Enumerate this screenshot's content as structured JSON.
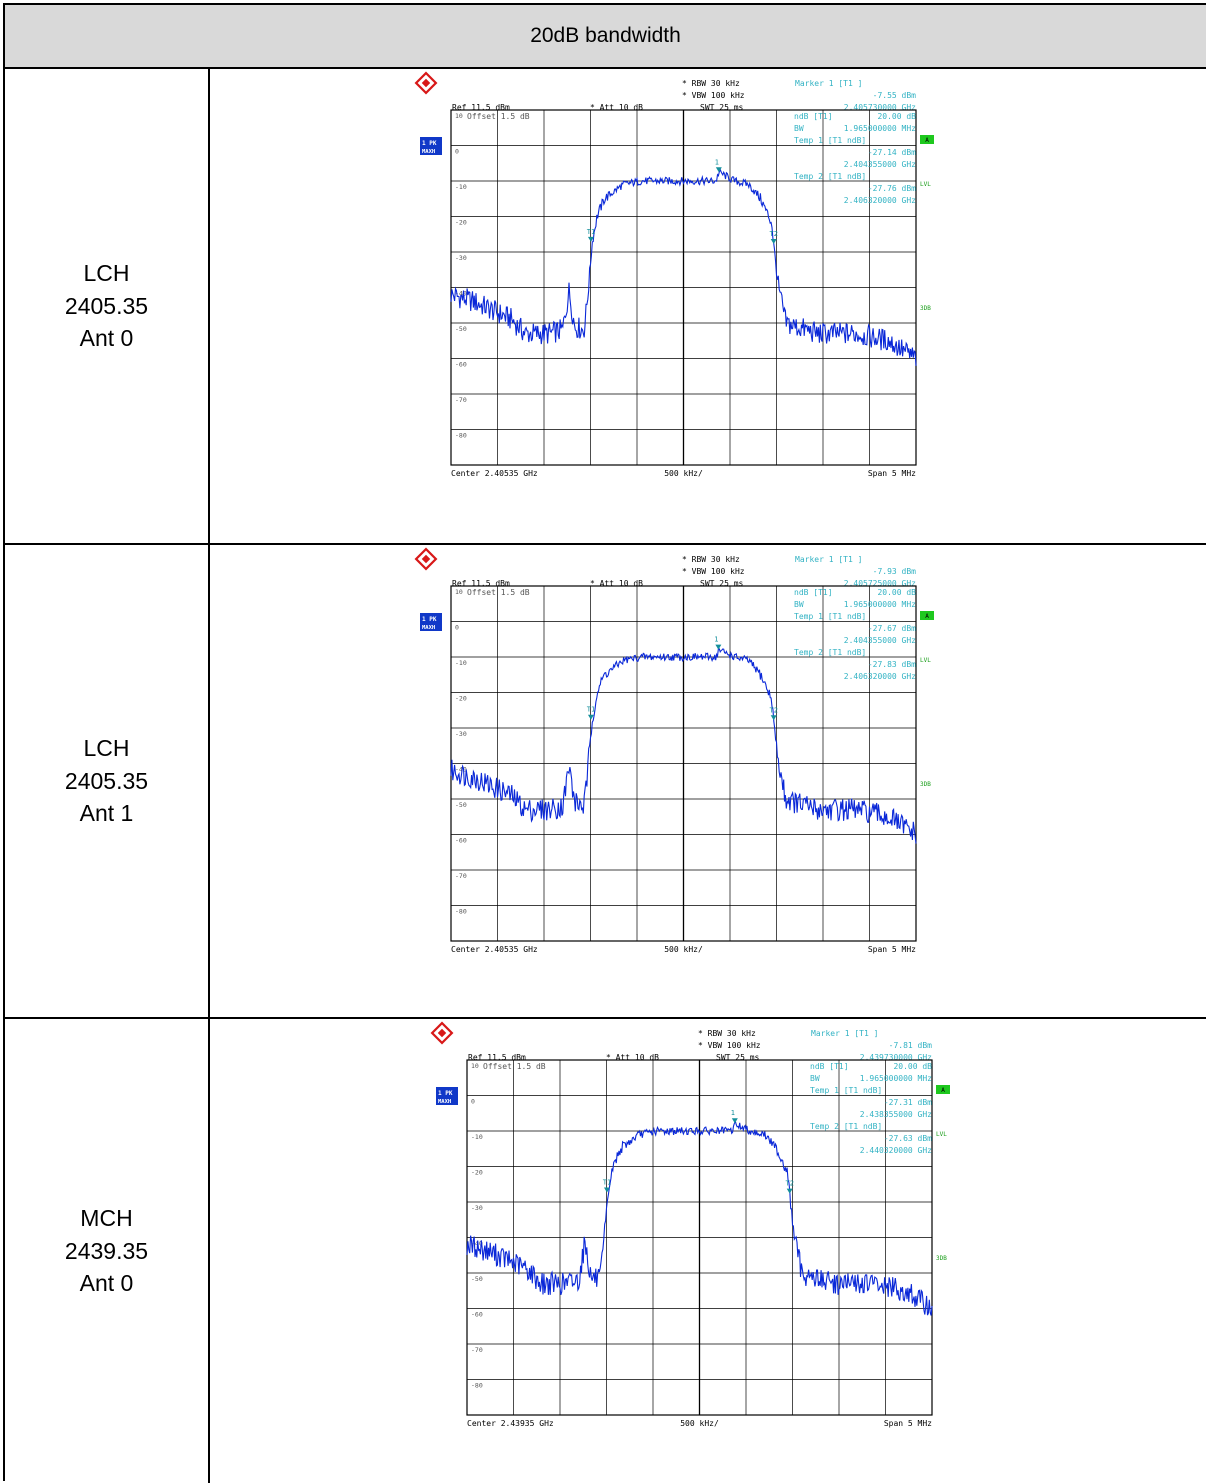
{
  "table": {
    "title": "20dB bandwidth",
    "rows": [
      {
        "label_lines": [
          "LCH",
          "2405.35",
          "Ant 0"
        ],
        "analyzer": {
          "rbw": "RBW 30 kHz",
          "vbw": "VBW 100 kHz",
          "swt": "SWT 25 ms",
          "ref": "Ref 11.5 dBm",
          "att": "Att 10 dB",
          "offset": "Offset 1.5 dB",
          "marker_title": "Marker 1 [T1 ]",
          "marker_level": "-7.55 dBm",
          "marker_freq": "2.405730000 GHz",
          "ndb_label": "ndB [T1]",
          "ndb_value": "20.00 dB",
          "bw_label": "BW",
          "bw_value": "1.965000000 MHz",
          "temp1_label": "Temp 1 [T1 ndB]",
          "temp1_level": "-27.14 dBm",
          "temp1_freq": "2.404355000 GHz",
          "temp2_label": "Temp 2 [T1 ndB]",
          "temp2_level": "-27.76 dBm",
          "temp2_freq": "2.406320000 GHz",
          "center": "Center 2.40535 GHz",
          "div": "500 kHz/",
          "span": "Span 5 MHz",
          "trace_box": "1 PK",
          "trace_box2": "MAXH",
          "side_a": "A",
          "side_lvl": "LVL",
          "side_3db": "3DB",
          "marker_labels": [
            "1",
            "T1",
            "T2"
          ],
          "y_ticks": [
            "10",
            "0",
            "-10",
            "-20",
            "-30",
            "-40",
            "-50",
            "-60",
            "-70",
            "-80"
          ]
        },
        "chart_data": {
          "type": "line",
          "xlabel": "",
          "ylabel": "",
          "xlim": [
            2.40285,
            2.40785
          ],
          "ylim": [
            -90,
            10
          ],
          "series": [
            {
              "x": [
                2.40285,
                2.4031,
                2.4035,
                2.40365,
                2.4039,
                2.40405,
                2.40412,
                2.40418,
                2.40428,
                2.4043,
                2.40434,
                2.40437,
                2.40442,
                2.4045,
                2.4047,
                2.4049,
                2.4051,
                2.4053,
                2.4055,
                2.4057,
                2.40573,
                2.4059,
                2.40605,
                2.40618,
                2.4063,
                2.40632,
                2.40637,
                2.40645,
                2.40655,
                2.4068,
                2.4072,
                2.40755,
                2.40785
              ],
              "y": [
                -42,
                -44,
                -49,
                -53,
                -53,
                -52,
                -41,
                -51,
                -52,
                -48,
                -36,
                -27,
                -20,
                -15,
                -11,
                -10,
                -10,
                -10,
                -10,
                -10,
                -7.5,
                -10,
                -11,
                -15,
                -22,
                -28,
                -40,
                -50,
                -51,
                -53,
                -53,
                -55,
                -60
              ]
            }
          ]
        }
      },
      {
        "label_lines": [
          "LCH",
          "2405.35",
          "Ant 1"
        ],
        "analyzer": {
          "rbw": "RBW 30 kHz",
          "vbw": "VBW 100 kHz",
          "swt": "SWT 25 ms",
          "ref": "Ref 11.5 dBm",
          "att": "Att 10 dB",
          "offset": "Offset 1.5 dB",
          "marker_title": "Marker 1 [T1 ]",
          "marker_level": "-7.93 dBm",
          "marker_freq": "2.405725000 GHz",
          "ndb_label": "ndB [T1]",
          "ndb_value": "20.00 dB",
          "bw_label": "BW",
          "bw_value": "1.965000000 MHz",
          "temp1_label": "Temp 1 [T1 ndB]",
          "temp1_level": "-27.67 dBm",
          "temp1_freq": "2.404355000 GHz",
          "temp2_label": "Temp 2 [T1 ndB]",
          "temp2_level": "-27.83 dBm",
          "temp2_freq": "2.406320000 GHz",
          "center": "Center 2.40535 GHz",
          "div": "500 kHz/",
          "span": "Span 5 MHz",
          "trace_box": "1 PK",
          "trace_box2": "MAXH",
          "side_a": "A",
          "side_lvl": "LVL",
          "side_3db": "3DB",
          "marker_labels": [
            "1",
            "T1",
            "T2"
          ],
          "y_ticks": [
            "10",
            "0",
            "-10",
            "-20",
            "-30",
            "-40",
            "-50",
            "-60",
            "-70",
            "-80"
          ]
        },
        "chart_data": {
          "type": "line",
          "xlabel": "",
          "ylabel": "",
          "xlim": [
            2.40285,
            2.40785
          ],
          "ylim": [
            -90,
            10
          ],
          "series": [
            {
              "x": [
                2.40285,
                2.4031,
                2.4035,
                2.40365,
                2.4039,
                2.40405,
                2.40412,
                2.40418,
                2.40428,
                2.4043,
                2.40434,
                2.40437,
                2.40442,
                2.4045,
                2.4047,
                2.4049,
                2.4051,
                2.4053,
                2.4055,
                2.4057,
                2.40573,
                2.4059,
                2.40605,
                2.40618,
                2.4063,
                2.40632,
                2.40637,
                2.40645,
                2.40655,
                2.4068,
                2.4072,
                2.40755,
                2.40785
              ],
              "y": [
                -42,
                -44,
                -49,
                -53,
                -53,
                -52,
                -41,
                -51,
                -52,
                -48,
                -36,
                -28,
                -20,
                -15,
                -11,
                -10,
                -10,
                -10,
                -10,
                -10,
                -8,
                -10,
                -11,
                -15,
                -22,
                -28,
                -40,
                -50,
                -51,
                -53,
                -53,
                -55,
                -60
              ]
            }
          ]
        }
      },
      {
        "label_lines": [
          "MCH",
          "2439.35",
          "Ant 0"
        ],
        "analyzer": {
          "rbw": "RBW 30 kHz",
          "vbw": "VBW 100 kHz",
          "swt": "SWT 25 ms",
          "ref": "Ref 11.5 dBm",
          "att": "Att 10 dB",
          "offset": "Offset 1.5 dB",
          "marker_title": "Marker 1 [T1 ]",
          "marker_level": "-7.81 dBm",
          "marker_freq": "2.439730000 GHz",
          "ndb_label": "ndB [T1]",
          "ndb_value": "20.00 dB",
          "bw_label": "BW",
          "bw_value": "1.965000000 MHz",
          "temp1_label": "Temp 1 [T1 ndB]",
          "temp1_level": "-27.31 dBm",
          "temp1_freq": "2.438355000 GHz",
          "temp2_label": "Temp 2 [T1 ndB]",
          "temp2_level": "-27.63 dBm",
          "temp2_freq": "2.440320000 GHz",
          "center": "Center 2.43935 GHz",
          "div": "500 kHz/",
          "span": "Span 5 MHz",
          "trace_box": "1 PK",
          "trace_box2": "MAXH",
          "side_a": "A",
          "side_lvl": "LVL",
          "side_3db": "3DB",
          "marker_labels": [
            "1",
            "T1",
            "T2"
          ],
          "y_ticks": [
            "10",
            "0",
            "-10",
            "-20",
            "-30",
            "-40",
            "-50",
            "-60",
            "-70",
            "-80"
          ]
        },
        "chart_data": {
          "type": "line",
          "xlabel": "",
          "ylabel": "",
          "xlim": [
            2.43685,
            2.44185
          ],
          "ylim": [
            -90,
            10
          ],
          "series": [
            {
              "x": [
                2.43685,
                2.4371,
                2.4375,
                2.43765,
                2.4379,
                2.43805,
                2.43812,
                2.43818,
                2.43828,
                2.4383,
                2.43834,
                2.43837,
                2.43842,
                2.4385,
                2.4387,
                2.4389,
                2.4391,
                2.4393,
                2.4395,
                2.4397,
                2.43973,
                2.4399,
                2.44005,
                2.44018,
                2.4403,
                2.44032,
                2.44037,
                2.44045,
                2.44055,
                2.4408,
                2.4412,
                2.44155,
                2.44185
              ],
              "y": [
                -42,
                -44,
                -49,
                -53,
                -53,
                -52,
                -41,
                -51,
                -52,
                -48,
                -36,
                -27,
                -20,
                -15,
                -11,
                -10,
                -10,
                -10,
                -10,
                -10,
                -8,
                -10,
                -11,
                -15,
                -22,
                -28,
                -40,
                -50,
                -51,
                -53,
                -53,
                -55,
                -60
              ]
            }
          ]
        }
      }
    ]
  },
  "colors": {
    "trace": "#0a28d8",
    "annot": "#33b3c4",
    "marker": "#138f9b",
    "box": "#1038c8",
    "green": "#1ec81e",
    "logo": "#d81818"
  },
  "icons": {
    "logo": "rohde-schwarz-logo"
  }
}
